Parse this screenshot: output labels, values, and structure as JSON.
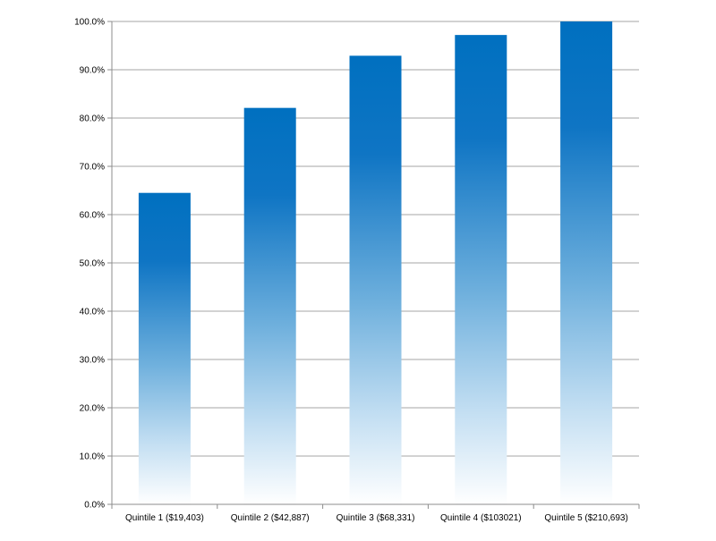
{
  "chart_data": {
    "type": "bar",
    "categories": [
      "Quintile 1 ($19,403)",
      "Quintile 2 ($42,887)",
      "Quintile 3 ($68,331)",
      "Quintile 4 ($103021)",
      "Quintile 5 ($210,693)"
    ],
    "values": [
      64.5,
      82.1,
      92.9,
      97.2,
      100.0
    ],
    "ylim": [
      0,
      100
    ],
    "yticks": [
      "0.0%",
      "10.0%",
      "20.0%",
      "30.0%",
      "40.0%",
      "50.0%",
      "60.0%",
      "70.0%",
      "80.0%",
      "90.0%",
      "100.0%"
    ],
    "grid": true,
    "legend": "none",
    "colors": {
      "bar_top": "#0070c0",
      "bar_bottom": "#ffffff",
      "grid": "#a6a6a6",
      "axis": "#8c8c8c"
    }
  }
}
